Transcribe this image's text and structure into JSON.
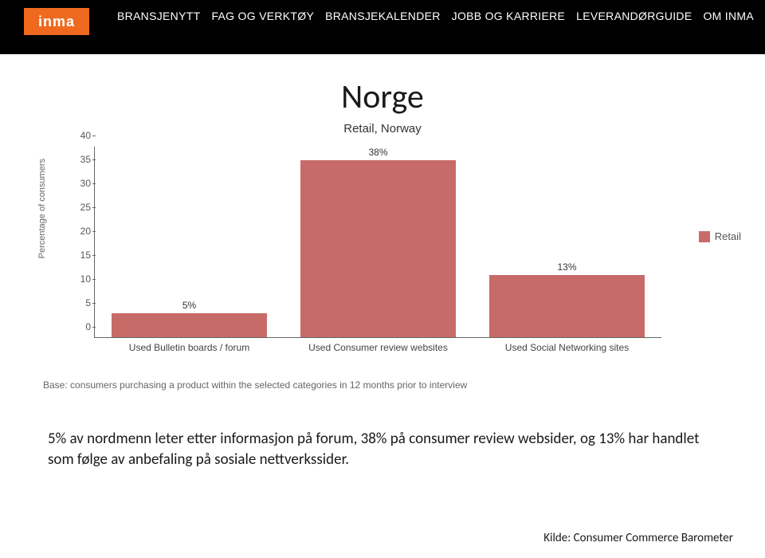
{
  "header": {
    "logo_text": "inma",
    "nav": [
      "BRANSJENYTT",
      "FAG OG VERKTØY",
      "BRANSJEKALENDER",
      "JOBB OG KARRIERE",
      "LEVERANDØRGUIDE",
      "OM INMA"
    ]
  },
  "title": "Norge",
  "subtitle": "Retail, Norway",
  "chart": {
    "type": "bar",
    "ylabel": "Percentage of consumers",
    "ylim": [
      0,
      40
    ],
    "ytick_step": 5,
    "yticks": [
      0,
      5,
      10,
      15,
      20,
      25,
      30,
      35,
      40
    ],
    "categories": [
      "Used Bulletin boards / forum",
      "Used Consumer review websites",
      "Used Social Networking sites"
    ],
    "values": [
      5,
      38,
      13
    ],
    "value_labels": [
      "5%",
      "38%",
      "13%"
    ],
    "bar_color": "#c76b68",
    "axis_color": "#666666",
    "text_color": "#555555",
    "background_color": "#ffffff",
    "bar_width": 0.82,
    "legend": {
      "label": "Retail",
      "color": "#c76b68"
    }
  },
  "base_note": "Base: consumers purchasing a product within the selected categories in 12 months prior to interview",
  "caption": "5% av nordmenn leter etter informasjon på forum, 38% på consumer review websider, og 13% har handlet som følge av anbefaling på sosiale nettverkssider.",
  "source": "Kilde: Consumer Commerce Barometer"
}
